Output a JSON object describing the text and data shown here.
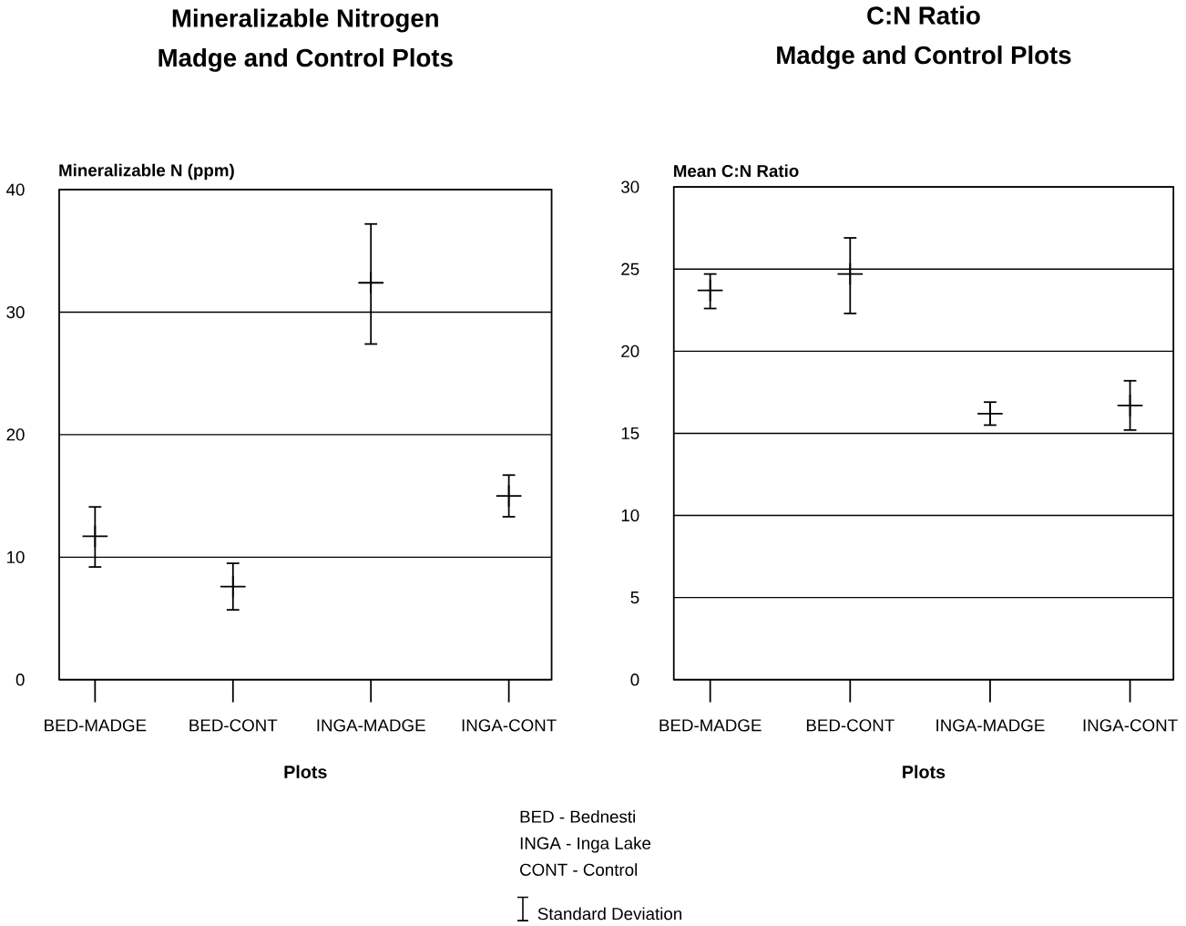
{
  "chart_data": [
    {
      "type": "scatter",
      "title": "Mineralizable Nitrogen",
      "subtitle": "Madge and Control Plots",
      "ylabel": "Mineralizable N (ppm)",
      "xlabel": "Plots",
      "categories": [
        "BED-MADGE",
        "BED-CONT",
        "INGA-MADGE",
        "INGA-CONT"
      ],
      "values": [
        11.7,
        7.6,
        32.4,
        15.0
      ],
      "errors": [
        [
          9.2,
          14.1
        ],
        [
          5.7,
          9.5
        ],
        [
          27.4,
          37.2
        ],
        [
          13.3,
          16.7
        ]
      ],
      "color": "#000000",
      "marker": "cross",
      "ylim": [
        0,
        40
      ],
      "yticks": [
        0,
        10,
        20,
        30,
        40
      ],
      "grid": "y"
    },
    {
      "type": "scatter",
      "title": "C:N Ratio",
      "subtitle": "Madge and Control Plots",
      "ylabel": "Mean C:N Ratio",
      "xlabel": "Plots",
      "categories": [
        "BED-MADGE",
        "BED-CONT",
        "INGA-MADGE",
        "INGA-CONT"
      ],
      "values": [
        23.7,
        24.7,
        16.2,
        16.7
      ],
      "errors": [
        [
          22.6,
          24.7
        ],
        [
          22.3,
          26.9
        ],
        [
          15.5,
          16.9
        ],
        [
          15.2,
          18.2
        ]
      ],
      "color": "#000000",
      "marker": "cross",
      "ylim": [
        0,
        30
      ],
      "yticks": [
        0,
        5,
        10,
        15,
        20,
        25,
        30
      ],
      "grid": "y"
    },
    {
      "type": "other",
      "annotations": [
        "BED - Bednesti",
        "INGA - Inga Lake",
        "CONT -  Control",
        "Standard Deviation"
      ]
    }
  ]
}
